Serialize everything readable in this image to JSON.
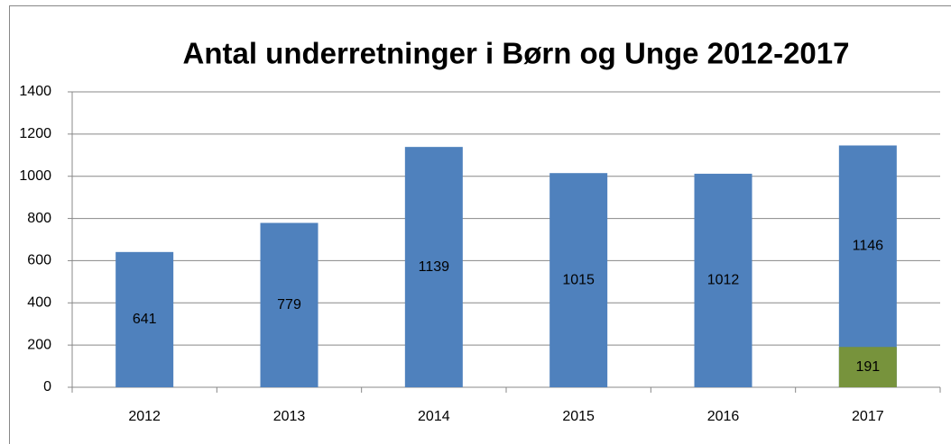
{
  "chart_data": {
    "type": "bar",
    "title": "Antal underretninger i Børn og Unge 2012-2017",
    "categories": [
      "2012",
      "2013",
      "2014",
      "2015",
      "2016",
      "2017"
    ],
    "series": [
      {
        "color": "#4f81bd",
        "values": [
          641,
          779,
          1139,
          1015,
          1012,
          1146
        ]
      },
      {
        "color": "#77933c",
        "values": [
          null,
          null,
          null,
          null,
          null,
          191
        ]
      }
    ],
    "ylim": [
      0,
      1400
    ],
    "yticks": [
      0,
      200,
      400,
      600,
      800,
      1000,
      1200,
      1400
    ],
    "grid": true
  }
}
